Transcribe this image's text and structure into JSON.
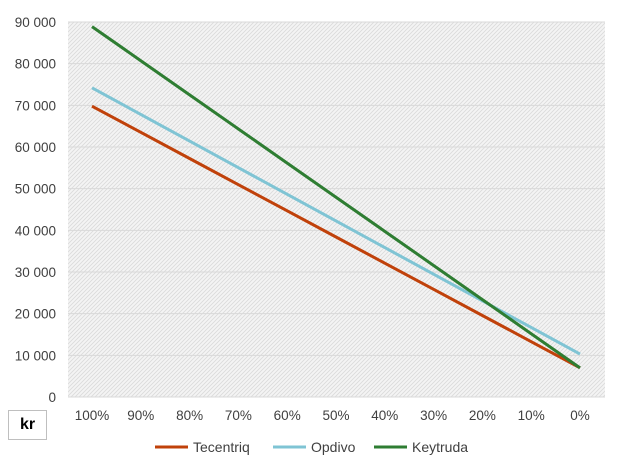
{
  "chart_data": {
    "type": "line",
    "title": "",
    "xlabel": "",
    "ylabel": "",
    "unit_label": "kr",
    "categories": [
      "100%",
      "90%",
      "80%",
      "70%",
      "60%",
      "50%",
      "40%",
      "30%",
      "20%",
      "10%",
      "0%"
    ],
    "y_ticks": [
      "0",
      "10 000",
      "20 000",
      "30 000",
      "40 000",
      "50 000",
      "60 000",
      "70 000",
      "80 000",
      "90 000"
    ],
    "ylim": [
      0,
      90000
    ],
    "grid": true,
    "background": "hatched light gray",
    "legend_position": "bottom",
    "series": [
      {
        "name": "Tecentriq",
        "color": "#C0410A",
        "start": 69800,
        "end": 7000
      },
      {
        "name": "Opdivo",
        "color": "#7FC4D4",
        "start": 74200,
        "end": 10300
      },
      {
        "name": "Keytruda",
        "color": "#2E7D32",
        "start": 88900,
        "end": 7000
      }
    ]
  }
}
